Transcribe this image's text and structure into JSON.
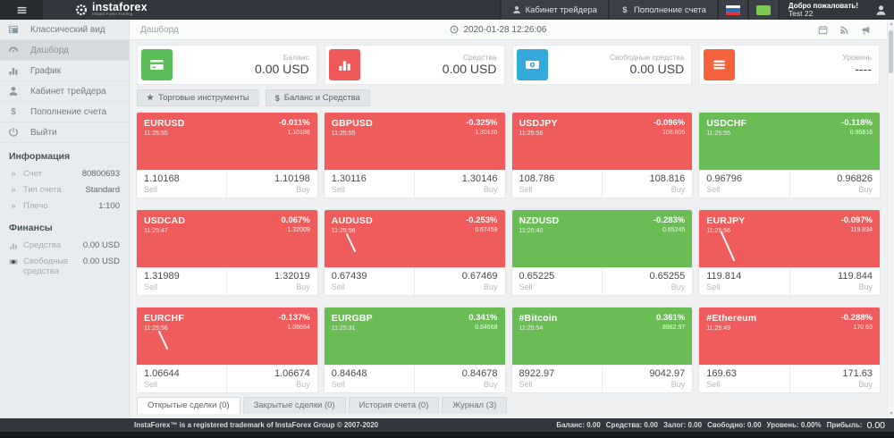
{
  "header": {
    "brand": "instaforex",
    "tagline": "Instant Forex Trading",
    "menu_items": [
      {
        "id": "trader-cabinet",
        "icon": "user",
        "label": "Кабинет трейдера"
      },
      {
        "id": "deposit",
        "icon": "dollar",
        "label": "Пополнение счета"
      }
    ],
    "welcome_title": "Добро пожаловать!",
    "welcome_user": "Test 22"
  },
  "sidebar": {
    "nav": [
      {
        "id": "classic-view",
        "icon": "grid",
        "label": "Классический вид",
        "active": false
      },
      {
        "id": "dashboard",
        "icon": "gauge",
        "label": "Дашборд",
        "active": true
      },
      {
        "id": "chart",
        "icon": "bar-chart",
        "label": "График",
        "active": false
      },
      {
        "id": "trader-cabinet",
        "icon": "user",
        "label": "Кабинет трейдера",
        "active": false
      },
      {
        "id": "deposit",
        "icon": "dollar",
        "label": "Пополнение счета",
        "active": false
      },
      {
        "id": "logout",
        "icon": "power",
        "label": "Выйти",
        "active": false
      }
    ],
    "info_heading": "Информация",
    "info_rows": [
      {
        "label": "Счет",
        "value": "80800693"
      },
      {
        "label": "Тип счета",
        "value": "Standard"
      },
      {
        "label": "Плечо",
        "value": "1:100"
      }
    ],
    "finance_heading": "Финансы",
    "finance_rows": [
      {
        "icon": "bar-chart",
        "label": "Средства",
        "value": "0.00 USD"
      },
      {
        "icon": "money",
        "label": "Свободные средства",
        "value": "0.00 USD"
      }
    ]
  },
  "topbar": {
    "breadcrumb": "Дашборд",
    "datetime": "2020-01-28 12:26:06"
  },
  "stat_cards": [
    {
      "id": "balance",
      "icon": "credit-card",
      "color": "#5bbd5a",
      "label": "Баланс",
      "value": "0.00 USD"
    },
    {
      "id": "equity",
      "icon": "bar-chart",
      "color": "#ef5858",
      "label": "Средства",
      "value": "0.00 USD"
    },
    {
      "id": "free-margin",
      "icon": "money",
      "color": "#33a9dc",
      "label": "Свободные средства",
      "value": "0.00 USD"
    },
    {
      "id": "level",
      "icon": "list",
      "color": "#f4633c",
      "label": "Уровень",
      "value": "----"
    }
  ],
  "toolbar": [
    {
      "id": "trading-instruments",
      "icon": "star",
      "label": "Торговые инструменты"
    },
    {
      "id": "balance-funds",
      "icon": "dollar",
      "label": "Баланс и Средства"
    }
  ],
  "labels": {
    "sell": "Sell",
    "buy": "Buy"
  },
  "tiles": [
    {
      "symbol": "EURUSD",
      "time": "11:25:55",
      "change": "-0.011%",
      "last": "1.10188",
      "sell": "1.10168",
      "buy": "1.10198",
      "color": "red",
      "spark": "none"
    },
    {
      "symbol": "GBPUSD",
      "time": "11:25:55",
      "change": "-0.325%",
      "last": "1.30136",
      "sell": "1.30116",
      "buy": "1.30146",
      "color": "red",
      "spark": "none"
    },
    {
      "symbol": "USDJPY",
      "time": "11:25:56",
      "change": "-0.096%",
      "last": "108.806",
      "sell": "108.786",
      "buy": "108.816",
      "color": "red",
      "spark": "none"
    },
    {
      "symbol": "USDCHF",
      "time": "11:25:55",
      "change": "-0.118%",
      "last": "0.96816",
      "sell": "0.96796",
      "buy": "0.96826",
      "color": "green",
      "spark": "none"
    },
    {
      "symbol": "USDCAD",
      "time": "11:25:47",
      "change": "0.067%",
      "last": "1.32009",
      "sell": "1.31989",
      "buy": "1.32019",
      "color": "red",
      "spark": "none"
    },
    {
      "symbol": "AUDUSD",
      "time": "11:25:56",
      "change": "-0.253%",
      "last": "0.67459",
      "sell": "0.67439",
      "buy": "0.67469",
      "color": "red",
      "spark": "short"
    },
    {
      "symbol": "NZDUSD",
      "time": "11:25:40",
      "change": "-0.283%",
      "last": "0.65245",
      "sell": "0.65225",
      "buy": "0.65255",
      "color": "green",
      "spark": "none"
    },
    {
      "symbol": "EURJPY",
      "time": "11:25:56",
      "change": "-0.097%",
      "last": "119.834",
      "sell": "119.814",
      "buy": "119.844",
      "color": "red",
      "spark": "long"
    },
    {
      "symbol": "EURCHF",
      "time": "11:25:56",
      "change": "-0.137%",
      "last": "1.06664",
      "sell": "1.06644",
      "buy": "1.06674",
      "color": "red",
      "spark": "short"
    },
    {
      "symbol": "EURGBP",
      "time": "11:25:31",
      "change": "0.341%",
      "last": "0.84668",
      "sell": "0.84648",
      "buy": "0.84678",
      "color": "green",
      "spark": "none"
    },
    {
      "symbol": "#Bitcoin",
      "time": "11:25:54",
      "change": "0.361%",
      "last": "8982.97",
      "sell": "8922.97",
      "buy": "9042.97",
      "color": "green",
      "spark": "none"
    },
    {
      "symbol": "#Ethereum",
      "time": "11:25:49",
      "change": "-0.288%",
      "last": "170.63",
      "sell": "169.63",
      "buy": "171.63",
      "color": "red",
      "spark": "none"
    }
  ],
  "tabs": [
    {
      "id": "open-trades",
      "label": "Открытые сделки (0)",
      "active": true
    },
    {
      "id": "closed-trades",
      "label": "Закрытые сделки (0)",
      "active": false
    },
    {
      "id": "account-history",
      "label": "История счета (0)",
      "active": false
    },
    {
      "id": "journal",
      "label": "Журнал (3)",
      "active": false
    }
  ],
  "footer": {
    "copyright": "InstaForex™ is a registered trademark of InstaForex Group © 2007-2020",
    "summary": [
      {
        "label": "Баланс:",
        "value": "0.00"
      },
      {
        "label": "Средства:",
        "value": "0.00"
      },
      {
        "label": "Залог:",
        "value": "0.00"
      },
      {
        "label": "Свободно:",
        "value": "0.00"
      },
      {
        "label": "Уровень:",
        "value": "0.00%"
      },
      {
        "label": "Прибыль:",
        "value": ""
      }
    ],
    "profit": "0.00"
  },
  "colors": {
    "tile_red": "#f05c5c",
    "tile_green": "#6abd55",
    "header_bg": "#31373c",
    "accent_blue": "#33a9dc",
    "accent_green": "#5bbd5a",
    "accent_red": "#ef5858",
    "accent_orange": "#f4633c"
  }
}
